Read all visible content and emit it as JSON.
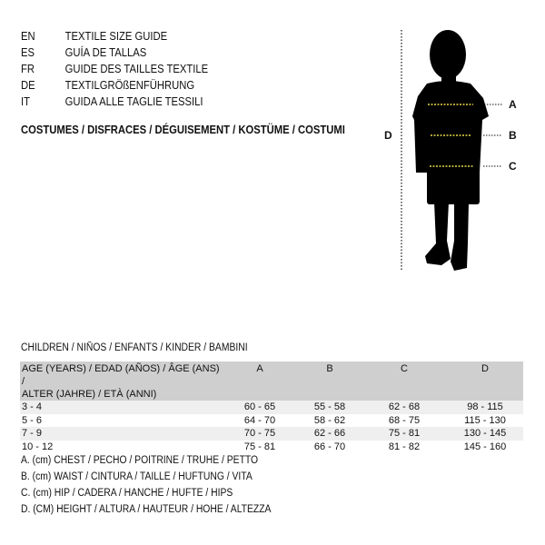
{
  "languages": [
    {
      "code": "EN",
      "title": "TEXTILE SIZE GUIDE"
    },
    {
      "code": "ES",
      "title": "GUÍA DE TALLAS"
    },
    {
      "code": "FR",
      "title": "GUIDE DES TAILLES TEXTILE"
    },
    {
      "code": "DE",
      "title": "TEXTILGRÖßENFÜHRUNG"
    },
    {
      "code": "IT",
      "title": "GUIDA ALLE TAGLIE TESSILI"
    }
  ],
  "category": "COSTUMES / DISFRACES / DÉGUISEMENT / KOSTÜME / COSTUMI",
  "figure": {
    "labels": {
      "a": "A",
      "b": "B",
      "c": "C",
      "d": "D"
    },
    "measure_color": "#e8d84a"
  },
  "section": "CHILDREN / NIÑOS / ENFANTS / KINDER / BAMBINI",
  "table": {
    "header": {
      "age_line1": "AGE (YEARS) / EDAD (AÑOS) / ÂGE (ANS) /",
      "age_line2": "ALTER (JAHRE) / ETÀ (ANNI)",
      "cols": [
        "A",
        "B",
        "C",
        "D"
      ]
    },
    "rows": [
      {
        "age": "3 - 4",
        "a": "60 - 65",
        "b": "55 - 58",
        "c": "62 - 68",
        "d": "98 - 115"
      },
      {
        "age": "5 - 6",
        "a": "64 - 70",
        "b": "58 - 62",
        "c": "68 - 75",
        "d": "115 - 130"
      },
      {
        "age": "7 - 9",
        "a": "70 - 75",
        "b": "62 - 66",
        "c": "75 - 81",
        "d": "130 - 145"
      },
      {
        "age": "10 - 12",
        "a": "75 - 81",
        "b": "66 - 70",
        "c": "81 - 82",
        "d": "145 - 160"
      }
    ]
  },
  "legend": [
    "A. (cm) CHEST / PECHO / POITRINE / TRUHE / PETTO",
    "B. (cm) WAIST / CINTURA / TAILLE / HÜFTUNG / VITA",
    "C. (cm) HIP / CADERA / HANCHE / HÜFTE / HIPS",
    "D. (CM) HEIGHT / ALTURA / HAUTEUR / HÖHE / ALTEZZA"
  ]
}
